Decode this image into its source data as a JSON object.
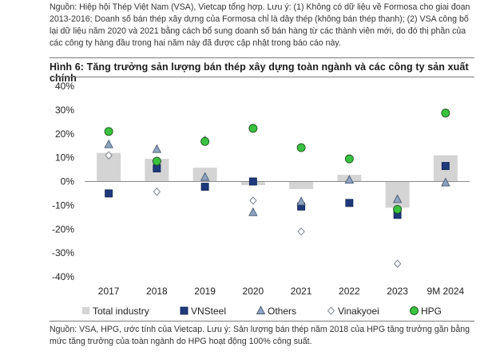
{
  "top_note": "Nguồn: Hiệp hội Thép Việt Nam (VSA), Vietcap tổng hợp. Lưu ý: (1) Không có dữ liệu về Formosa cho giai đoạn 2013-2016; Doanh số bán thép xây dựng của Formosa chỉ là dây thép (không bán thép thanh); (2) VSA công bố lại dữ liệu năm 2020 và 2021 bằng cách bổ sung doanh số bán hàng từ các thành viên mới, do đó thị phần của các công ty hàng đầu trong hai năm này đã được cập nhật trong báo cáo này.",
  "bottom_note": "Nguồn: VSA, HPG, ước tính của Vietcap. Lưu ý: Sản lượng bán thép năm 2018 của HPG tăng trưởng gần bằng mức tăng trưởng của toàn ngành do HPG hoạt động 100% công suất.",
  "chart_data": {
    "type": "bar",
    "title": "Hình 6: Tăng trưởng sản lượng bán thép xây dựng toàn ngành và các công ty sản xuất chính",
    "categories": [
      "2017",
      "2018",
      "2019",
      "2020",
      "2021",
      "2022",
      "2023",
      "9M 2024"
    ],
    "ylim": [
      -40,
      40
    ],
    "yticks": [
      -40,
      -30,
      -20,
      -10,
      0,
      10,
      20,
      30,
      40
    ],
    "ytick_labels": [
      "-40%",
      "-30%",
      "-20%",
      "-10%",
      "0%",
      "10%",
      "20%",
      "30%",
      "40%"
    ],
    "grid": false,
    "legend_position": "bottom",
    "series": [
      {
        "name": "Total industry",
        "kind": "bar",
        "marker": "bar",
        "color": "#d4d4d4",
        "values": [
          12,
          9.5,
          5.8,
          -1.5,
          -3.2,
          2.8,
          -11,
          11
        ]
      },
      {
        "name": "VNSteel",
        "kind": "marker",
        "marker": "square",
        "color": "#1f3a7a",
        "values": [
          -5,
          5.5,
          -2.2,
          0,
          -10.5,
          -9,
          -14,
          6.5
        ]
      },
      {
        "name": "Others",
        "kind": "marker",
        "marker": "triangle",
        "color": "#8ea3bf",
        "values": [
          15.5,
          13.5,
          1.8,
          -13,
          -8.5,
          0.6,
          -7.5,
          -0.5
        ]
      },
      {
        "name": "Vinakyoei",
        "kind": "marker",
        "marker": "diamond",
        "color": "#ffffff",
        "values": [
          11,
          -4.3,
          17.5,
          -8,
          -21,
          9.5,
          -34.5,
          null
        ]
      },
      {
        "name": "HPG",
        "kind": "marker",
        "marker": "circle",
        "color": "#39c23f",
        "values": [
          21,
          8.5,
          16.8,
          22.3,
          14.2,
          9.5,
          -11.7,
          28.7
        ]
      }
    ]
  }
}
